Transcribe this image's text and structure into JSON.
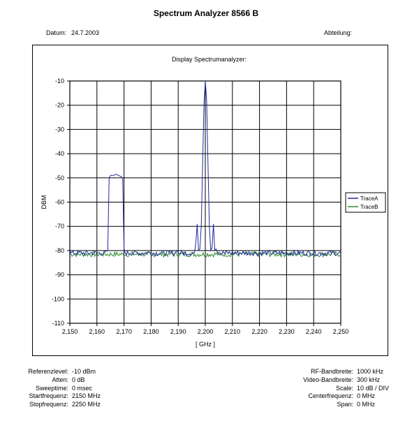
{
  "header": {
    "title": "Spectrum Analyzer 8566 B",
    "date_label": "Datum:",
    "date_value": "24.7.2003",
    "dept_label": "Abteilung:"
  },
  "chart_data": {
    "type": "line",
    "title": "Display Spectrumanalyzer:",
    "xlabel": "[ GHz ]",
    "ylabel": "DBM",
    "xlim": [
      2.15,
      2.25
    ],
    "ylim": [
      -110,
      -10
    ],
    "xticks": [
      "2,150",
      "2,160",
      "2,170",
      "2,180",
      "2,190",
      "2,200",
      "2,210",
      "2,220",
      "2,230",
      "2,240",
      "2,250"
    ],
    "yticks": [
      "-10",
      "-20",
      "-30",
      "-40",
      "-50",
      "-60",
      "-70",
      "-80",
      "-90",
      "-100",
      "-110"
    ],
    "grid": true,
    "legend_position": "right",
    "series": [
      {
        "name": "TraceA",
        "color": "#1f2a9c",
        "points": [
          [
            2.15,
            -81
          ],
          [
            2.155,
            -81
          ],
          [
            2.16,
            -81
          ],
          [
            2.1635,
            -81
          ],
          [
            2.164,
            -80
          ],
          [
            2.1645,
            -50
          ],
          [
            2.165,
            -49
          ],
          [
            2.166,
            -49
          ],
          [
            2.167,
            -48.5
          ],
          [
            2.168,
            -49
          ],
          [
            2.169,
            -49.5
          ],
          [
            2.1695,
            -50
          ],
          [
            2.17,
            -80
          ],
          [
            2.1705,
            -81
          ],
          [
            2.175,
            -81
          ],
          [
            2.18,
            -81
          ],
          [
            2.185,
            -81
          ],
          [
            2.189,
            -81
          ],
          [
            2.1895,
            -79
          ],
          [
            2.19,
            -81
          ],
          [
            2.195,
            -81
          ],
          [
            2.196,
            -81
          ],
          [
            2.1965,
            -78
          ],
          [
            2.197,
            -69
          ],
          [
            2.1975,
            -79
          ],
          [
            2.198,
            -79
          ],
          [
            2.1985,
            -70
          ],
          [
            2.199,
            -45
          ],
          [
            2.1995,
            -20
          ],
          [
            2.2,
            -10
          ],
          [
            2.2005,
            -18
          ],
          [
            2.201,
            -45
          ],
          [
            2.2015,
            -70
          ],
          [
            2.202,
            -79
          ],
          [
            2.2025,
            -78
          ],
          [
            2.203,
            -69
          ],
          [
            2.2035,
            -79
          ],
          [
            2.204,
            -79
          ],
          [
            2.2045,
            -80
          ],
          [
            2.205,
            -81
          ],
          [
            2.21,
            -81
          ],
          [
            2.22,
            -81
          ],
          [
            2.23,
            -81
          ],
          [
            2.24,
            -81
          ],
          [
            2.25,
            -81
          ]
        ]
      },
      {
        "name": "TraceB",
        "color": "#2e8b2e",
        "points": [
          [
            2.15,
            -81.5
          ],
          [
            2.16,
            -81.5
          ],
          [
            2.17,
            -81.5
          ],
          [
            2.18,
            -81.5
          ],
          [
            2.19,
            -81.5
          ],
          [
            2.2,
            -81.5
          ],
          [
            2.21,
            -81.5
          ],
          [
            2.22,
            -81.5
          ],
          [
            2.23,
            -81.5
          ],
          [
            2.24,
            -81.5
          ],
          [
            2.25,
            -81.5
          ]
        ]
      }
    ]
  },
  "settings_left": [
    {
      "label": "Referenzlevel:",
      "value": "-10 dBm"
    },
    {
      "label": "Atten:",
      "value": "0 dB"
    },
    {
      "label": "Sweeptime:",
      "value": "0 msec"
    },
    {
      "label": "Startfrequenz:",
      "value": "2150 MHz"
    },
    {
      "label": "Stopfrequenz:",
      "value": "2250 MHz"
    }
  ],
  "settings_right": [
    {
      "label": "RF-Bandbreite:",
      "value": "1000 kHz"
    },
    {
      "label": "Video-Bandbreite:",
      "value": "300 kHz"
    },
    {
      "label": "Scale:",
      "value": "10 dB / DIV"
    },
    {
      "label": "Centerfrequenz:",
      "value": "0 MHz"
    },
    {
      "label": "Span:",
      "value": "0 MHz"
    }
  ]
}
